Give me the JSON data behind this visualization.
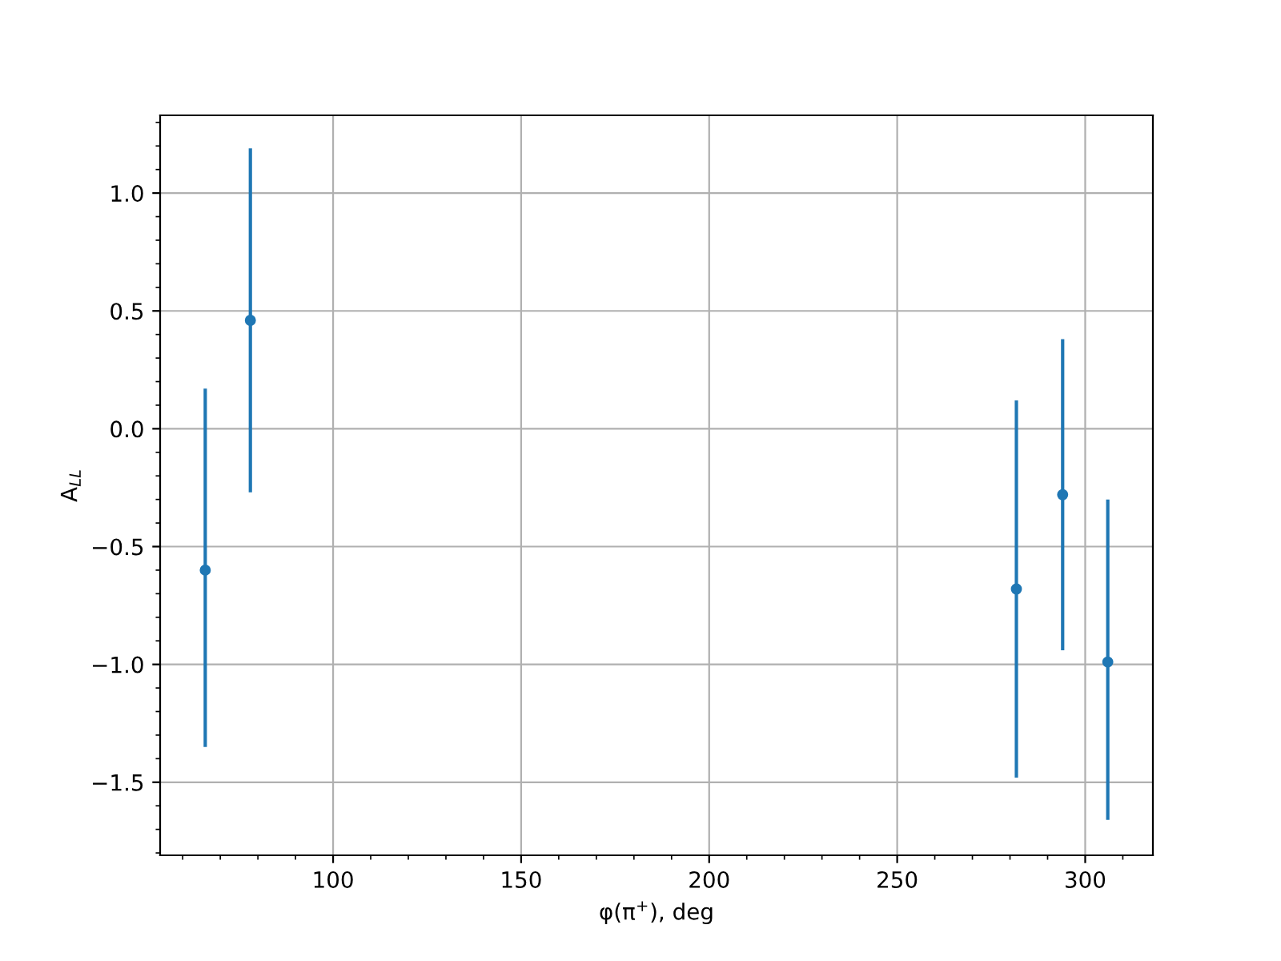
{
  "chart_data": {
    "type": "scatter",
    "xlabel": "φ(π$^{+}$), deg",
    "ylabel": "A$_{LL}$",
    "x": [
      66,
      78,
      281.7,
      294,
      306
    ],
    "values": [
      -0.6,
      0.46,
      -0.68,
      -0.28,
      -0.99
    ],
    "errors": [
      [
        -1.35,
        0.17
      ],
      [
        -0.27,
        1.19
      ],
      [
        -1.48,
        0.12
      ],
      [
        -0.94,
        0.38
      ],
      [
        -1.66,
        -0.3
      ]
    ],
    "color": "#1f77b4",
    "marker": "circle",
    "xlim": [
      54,
      318
    ],
    "ylim": [
      -1.81,
      1.33
    ],
    "xticks": [
      100,
      150,
      200,
      250,
      300
    ],
    "yticks": [
      {
        "value": -1.5,
        "label": "−1.5"
      },
      {
        "value": -1.0,
        "label": "−1.0"
      },
      {
        "value": -0.5,
        "label": "−0.5"
      },
      {
        "value": 0.0,
        "label": "0.0"
      },
      {
        "value": 0.5,
        "label": "0.5"
      },
      {
        "value": 1.0,
        "label": "1.0"
      }
    ],
    "grid": true
  }
}
